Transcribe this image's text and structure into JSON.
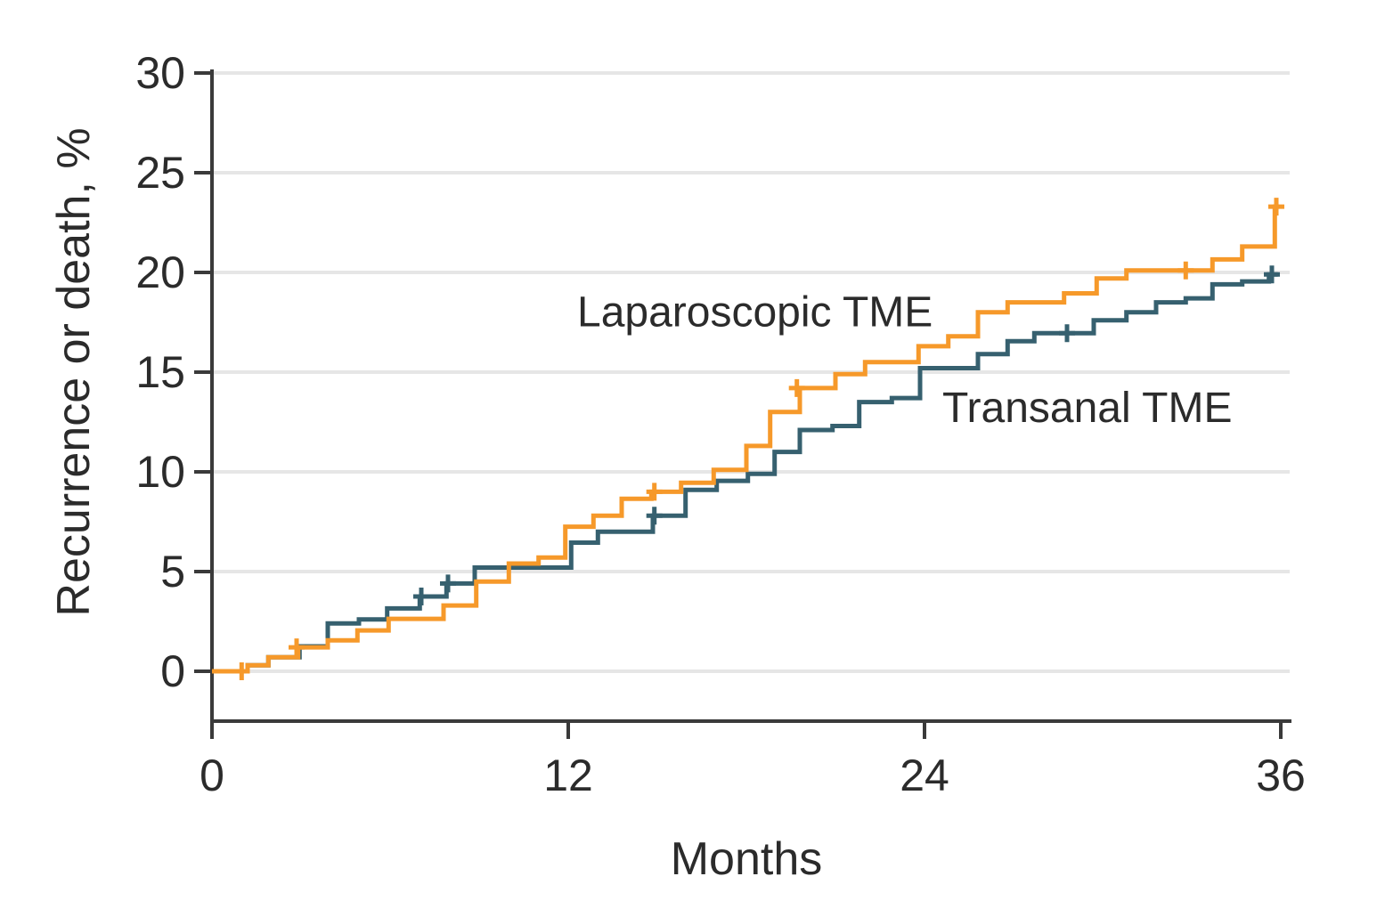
{
  "chart_data": {
    "type": "line",
    "subtype": "kaplan-meier-cumulative-incidence-step",
    "title": "",
    "xlabel": "Months",
    "ylabel": "Recurrence or death, %",
    "xlim": [
      0,
      36
    ],
    "ylim": [
      0,
      30
    ],
    "xticks": [
      0,
      12,
      24,
      36
    ],
    "yticks": [
      0,
      5,
      10,
      15,
      20,
      25,
      30
    ],
    "grid": true,
    "grid_color": "#e6e6e6",
    "axis_color": "#3a3a3a",
    "legend_position": "inline-annotations",
    "series": [
      {
        "name": "Transanal TME",
        "color": "#36606f",
        "start": [
          0,
          0
        ],
        "end_time": 35.9,
        "steps": [
          [
            1.2,
            0.3
          ],
          [
            1.9,
            0.7
          ],
          [
            2.95,
            1.25
          ],
          [
            3.9,
            2.4
          ],
          [
            4.95,
            2.6
          ],
          [
            5.9,
            3.15
          ],
          [
            7.0,
            3.75
          ],
          [
            7.9,
            4.4
          ],
          [
            8.85,
            5.2
          ],
          [
            12.1,
            6.45
          ],
          [
            13.0,
            7.0
          ],
          [
            14.85,
            7.8
          ],
          [
            15.95,
            9.1
          ],
          [
            17.0,
            9.55
          ],
          [
            18.05,
            9.9
          ],
          [
            18.95,
            11.0
          ],
          [
            19.8,
            12.1
          ],
          [
            20.9,
            12.3
          ],
          [
            21.8,
            13.5
          ],
          [
            22.9,
            13.7
          ],
          [
            23.85,
            15.2
          ],
          [
            25.8,
            15.9
          ],
          [
            26.8,
            16.55
          ],
          [
            27.7,
            16.95
          ],
          [
            29.7,
            17.6
          ],
          [
            30.8,
            18.0
          ],
          [
            31.8,
            18.5
          ],
          [
            32.8,
            18.7
          ],
          [
            33.7,
            19.4
          ],
          [
            34.7,
            19.55
          ],
          [
            35.6,
            19.9
          ]
        ],
        "censor_marks": [
          [
            7.05,
            3.75
          ],
          [
            7.95,
            4.4
          ],
          [
            14.9,
            7.8
          ],
          [
            28.8,
            16.95
          ],
          [
            35.7,
            19.9
          ]
        ]
      },
      {
        "name": "Laparoscopic TME",
        "color": "#f6992a",
        "start": [
          0,
          0
        ],
        "end_time": 35.95,
        "steps": [
          [
            1.2,
            0.3
          ],
          [
            1.9,
            0.7
          ],
          [
            2.9,
            1.2
          ],
          [
            3.9,
            1.55
          ],
          [
            4.9,
            2.05
          ],
          [
            5.95,
            2.63
          ],
          [
            7.8,
            3.3
          ],
          [
            8.9,
            4.5
          ],
          [
            10.0,
            5.4
          ],
          [
            11.0,
            5.7
          ],
          [
            11.9,
            7.25
          ],
          [
            12.85,
            7.8
          ],
          [
            13.8,
            8.65
          ],
          [
            14.8,
            9.0
          ],
          [
            15.8,
            9.45
          ],
          [
            16.9,
            10.1
          ],
          [
            18.0,
            11.3
          ],
          [
            18.8,
            13.0
          ],
          [
            19.8,
            14.2
          ],
          [
            21.0,
            14.9
          ],
          [
            22.0,
            15.5
          ],
          [
            23.8,
            16.3
          ],
          [
            24.8,
            16.8
          ],
          [
            25.8,
            18.0
          ],
          [
            26.8,
            18.5
          ],
          [
            28.7,
            18.95
          ],
          [
            29.8,
            19.7
          ],
          [
            30.8,
            20.1
          ],
          [
            33.7,
            20.65
          ],
          [
            34.7,
            21.3
          ],
          [
            35.8,
            23.3
          ]
        ],
        "censor_marks": [
          [
            1.0,
            0
          ],
          [
            2.85,
            1.2
          ],
          [
            14.9,
            9.0
          ],
          [
            19.7,
            14.2
          ],
          [
            32.8,
            20.1
          ],
          [
            35.85,
            23.3
          ]
        ]
      }
    ],
    "annotations": [
      {
        "text": "Laparoscopic TME",
        "x_months": 12.3,
        "y_percent": 17.3,
        "series": "Laparoscopic TME"
      },
      {
        "text": "Transanal TME",
        "x_months": 24.6,
        "y_percent": 12.5,
        "series": "Transanal TME"
      }
    ]
  },
  "colors": {
    "background": "#ffffff",
    "text": "#2b2b2b",
    "grid": "#e6e6e6",
    "axis": "#3a3a3a",
    "laparoscopic": "#f6992a",
    "transanal": "#36606f"
  }
}
